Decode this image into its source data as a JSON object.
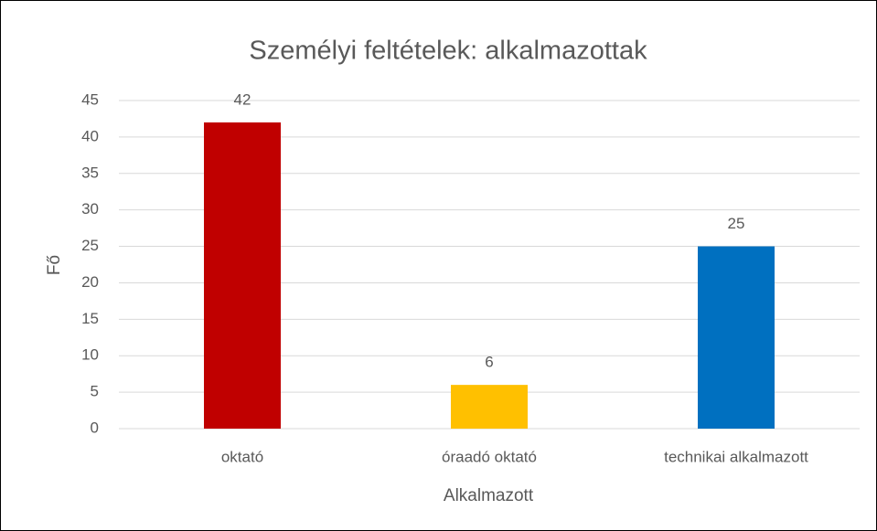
{
  "chart_data": {
    "type": "bar",
    "title": "Személyi feltételek: alkalmazottak",
    "categories": [
      "oktató",
      "óraadó oktató",
      "technikai alkalmazott"
    ],
    "values": [
      42,
      6,
      25
    ],
    "colors": [
      "#c00000",
      "#ffc000",
      "#0070c0"
    ],
    "x_label": "Alkalmazott",
    "y_label": "Fő",
    "ylim": [
      0,
      45
    ],
    "yticks": [
      0,
      5,
      10,
      15,
      20,
      25,
      30,
      35,
      40,
      45
    ],
    "grid": true
  }
}
